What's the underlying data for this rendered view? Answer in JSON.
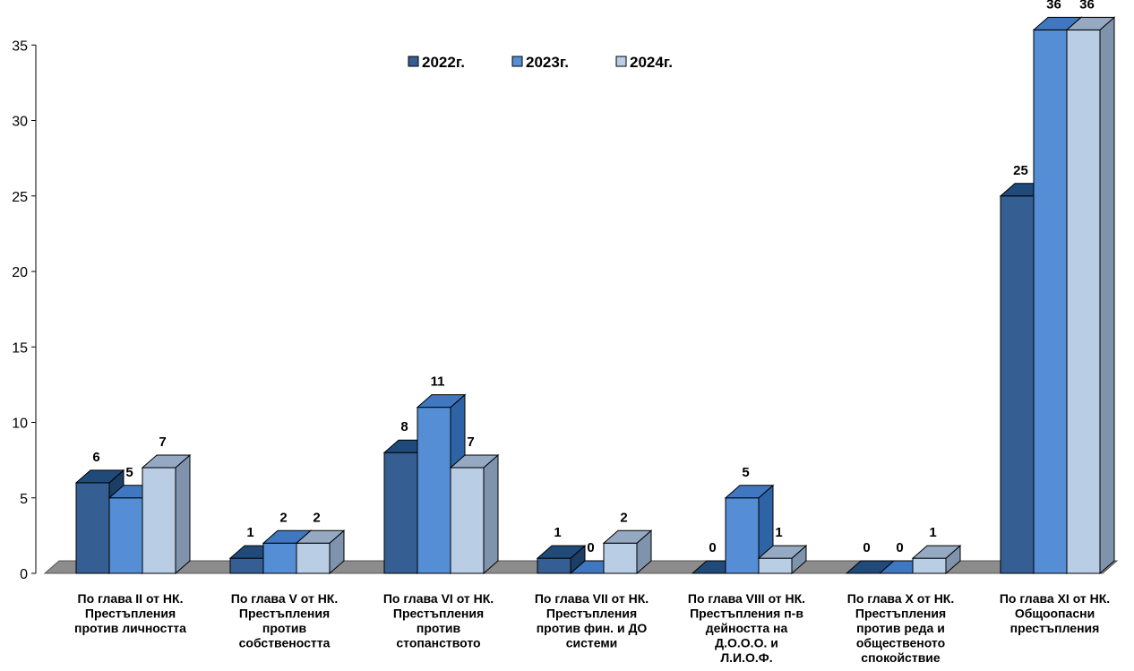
{
  "chart_data": {
    "type": "bar",
    "title": "",
    "xlabel": "",
    "ylabel": "",
    "ylim": [
      0,
      35
    ],
    "yticks": [
      0,
      5,
      10,
      15,
      20,
      25,
      30,
      35
    ],
    "legend_position": "top-center",
    "grid": false,
    "categories": [
      [
        "По глава II от НК.",
        "Престъпления",
        "против личността"
      ],
      [
        "По глава V от НК.",
        "Престъпления",
        "против",
        "собствеността"
      ],
      [
        "По глава VI от НК.",
        "Престъпления",
        "против",
        "стопанството"
      ],
      [
        "По глава VII от НК.",
        "Престъпления",
        "против фин. и ДО",
        "системи"
      ],
      [
        "По глава VIII от НК.",
        "Престъпления п-в",
        "дейността на",
        "Д.О.О.О. и",
        "Л.И.О.Ф."
      ],
      [
        "По глава X от НК.",
        "Престъпления",
        "против реда и",
        "общественото",
        "спокойствие"
      ],
      [
        "По глава XI от НК.",
        "Общоопасни",
        "престъпления"
      ]
    ],
    "series": [
      {
        "name": "2022г.",
        "color": "#355f93",
        "top": "#1f4a7a",
        "side": "#1c3d66",
        "values": [
          6,
          1,
          8,
          1,
          0,
          0,
          25
        ]
      },
      {
        "name": "2023г.",
        "color": "#558ed5",
        "top": "#3f78c0",
        "side": "#2e63a6",
        "values": [
          5,
          2,
          11,
          0,
          5,
          0,
          36
        ]
      },
      {
        "name": "2024г.",
        "color": "#b9cde5",
        "top": "#95a9c2",
        "side": "#7f93ac",
        "values": [
          7,
          2,
          7,
          2,
          1,
          1,
          36
        ]
      }
    ],
    "floor_color": "#8c8c8c"
  }
}
